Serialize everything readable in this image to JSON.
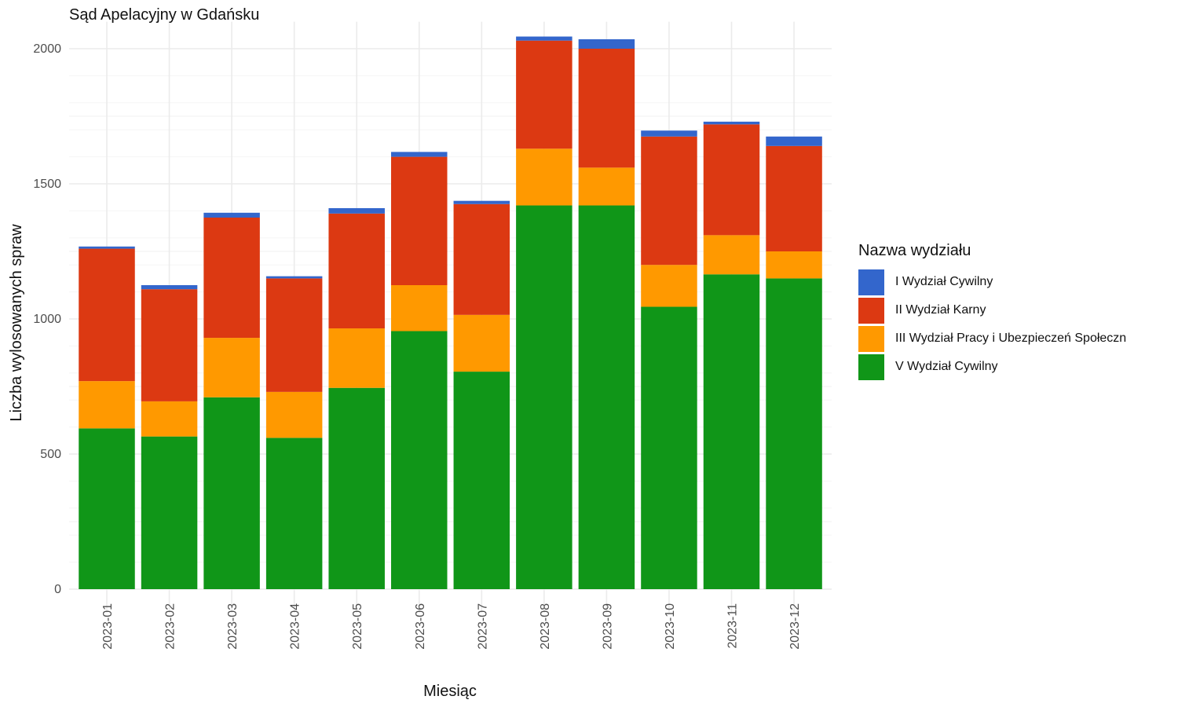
{
  "chart_data": {
    "type": "bar",
    "stacked": true,
    "title": "Sąd Apelacyjny w Gdańsku",
    "xlabel": "Miesiąc",
    "ylabel": "Liczba wylosowanych spraw",
    "ylim": [
      0,
      2100
    ],
    "yticks": [
      0,
      500,
      1000,
      1500,
      2000
    ],
    "grid": true,
    "legend_title": "Nazwa wydziału",
    "legend_position": "right",
    "categories": [
      "2023-01",
      "2023-02",
      "2023-03",
      "2023-04",
      "2023-05",
      "2023-06",
      "2023-07",
      "2023-08",
      "2023-09",
      "2023-10",
      "2023-11",
      "2023-12"
    ],
    "series": [
      {
        "name": "V Wydział Cywilny",
        "color": "#109618",
        "values": [
          595,
          565,
          710,
          560,
          745,
          955,
          805,
          1420,
          1420,
          1045,
          1165,
          1150
        ]
      },
      {
        "name": "III Wydział Pracy i Ubezpieczeń Społeczn",
        "color": "#FF9900",
        "values": [
          175,
          130,
          220,
          170,
          220,
          170,
          210,
          210,
          140,
          155,
          145,
          100
        ]
      },
      {
        "name": "II Wydział Karny",
        "color": "#DC3912",
        "values": [
          490,
          415,
          445,
          420,
          425,
          475,
          410,
          400,
          440,
          475,
          410,
          390
        ]
      },
      {
        "name": "I Wydział Cywilny",
        "color": "#3366CC",
        "values": [
          8,
          15,
          18,
          8,
          20,
          18,
          12,
          15,
          35,
          22,
          10,
          35
        ]
      }
    ],
    "legend_order": [
      "I Wydział Cywilny",
      "II Wydział Karny",
      "III Wydział Pracy i Ubezpieczeń Społeczn",
      "V Wydział Cywilny"
    ]
  }
}
